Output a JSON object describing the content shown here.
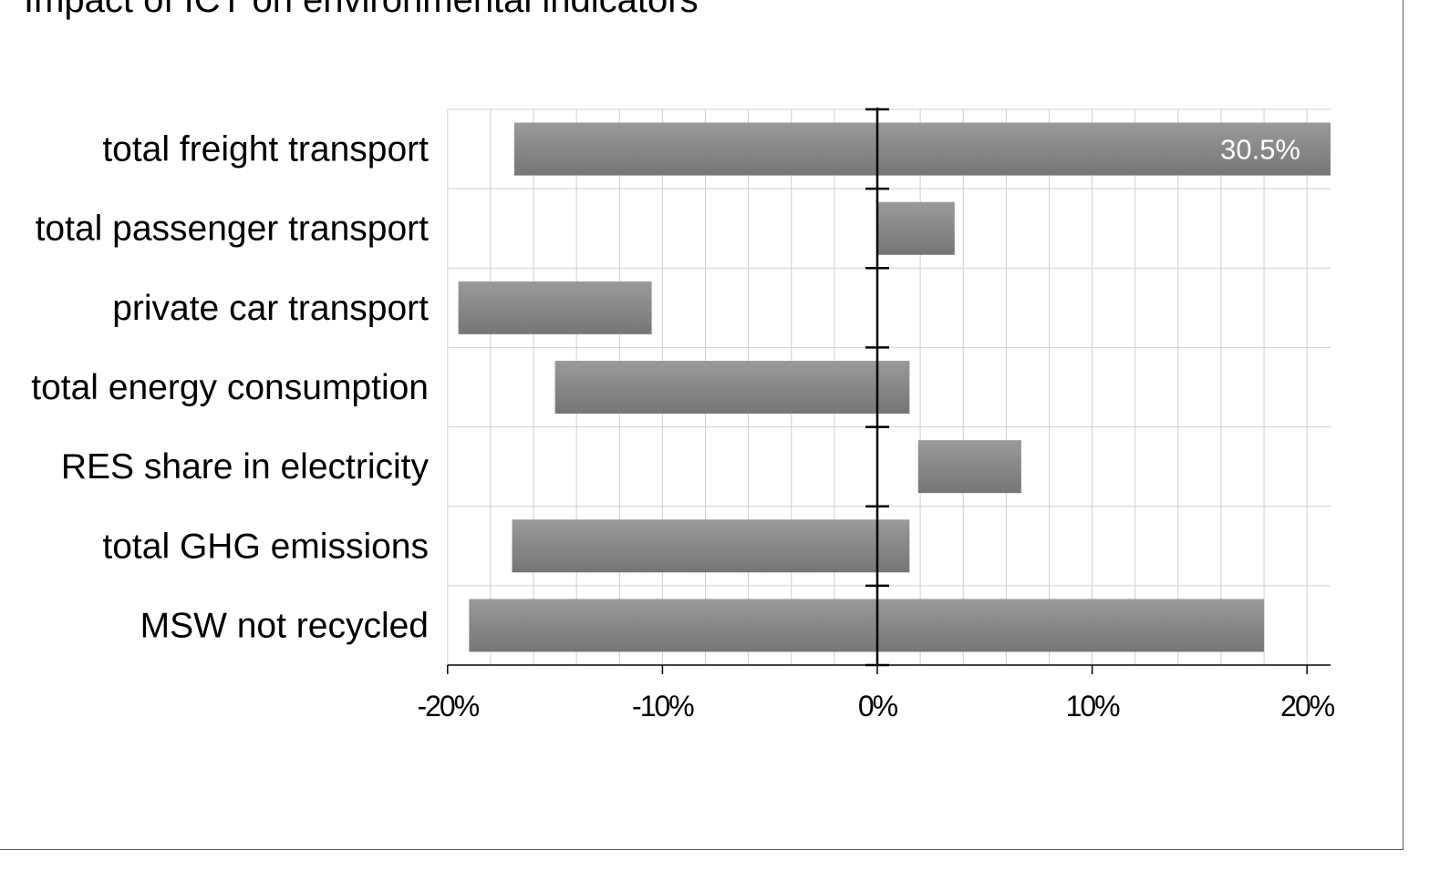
{
  "chart_data": {
    "type": "bar",
    "orientation": "horizontal",
    "style": "range-bars",
    "title": "Impact of ICT on environmental indicators",
    "xlabel": "",
    "ylabel": "",
    "xlim": [
      -20,
      21
    ],
    "x_unit": "%",
    "grid": true,
    "legend": "none",
    "categories": [
      "total freight transport",
      "total passenger transport",
      "private car transport",
      "total energy consumption",
      "RES share in electricity",
      "total GHG emissions",
      "MSW not recycled"
    ],
    "series": [
      {
        "ranges": [
          [
            -16.9,
            30.5
          ],
          [
            0.0,
            3.6
          ],
          [
            -19.5,
            -10.5
          ],
          [
            -15.0,
            1.5
          ],
          [
            1.9,
            6.7
          ],
          [
            -17.0,
            1.5
          ],
          [
            -19.0,
            18.0
          ]
        ]
      }
    ],
    "ticks": [
      {
        "value": -20,
        "label": "-20%"
      },
      {
        "value": -10,
        "label": "-10%"
      },
      {
        "value": 0,
        "label": "0%"
      },
      {
        "value": 10,
        "label": "10%"
      },
      {
        "value": 20,
        "label": "20%"
      }
    ],
    "data_labels": [
      {
        "category": "total freight transport",
        "text": "30.5%"
      }
    ],
    "colors": {
      "bar_top": "#9a9a9a",
      "bar_bottom": "#767676",
      "grid": "#d0d0d0",
      "axis": "#000000",
      "data_label": "#ffffff"
    }
  }
}
